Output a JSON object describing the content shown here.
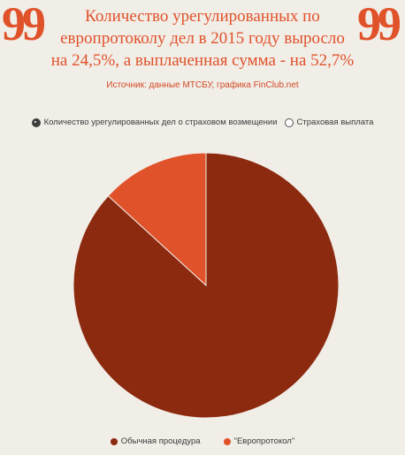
{
  "header": {
    "title_lines": [
      "Количество урегулированных по",
      "европротоколу дел в 2015 году выросло",
      "на 24,5%, а выплаченная сумма - на 52,7%"
    ],
    "source": "Источник: данные МТСБУ, графика FinClub.net",
    "quote_left": "99",
    "quote_right": "99"
  },
  "toggles": [
    {
      "label": "Количество урегулированных дел о страховом возмещении",
      "selected": true
    },
    {
      "label": "Страховая выплата",
      "selected": false
    }
  ],
  "colors": {
    "primary": "#8b2a0f",
    "secondary": "#e0522a",
    "accent_text": "#e0522a"
  },
  "chart_data": {
    "type": "pie",
    "title": "Количество урегулированных по европротоколу дел в 2015 году выросло на 24,5%, а выплаченная сумма - на 52,7%",
    "slices": [
      {
        "label": "Обычная процедура",
        "value": 86.8,
        "color": "#8b2a0f"
      },
      {
        "label": "\"Европротокол\"",
        "value": 13.2,
        "color": "#e0522a"
      }
    ],
    "legend_position": "bottom"
  }
}
